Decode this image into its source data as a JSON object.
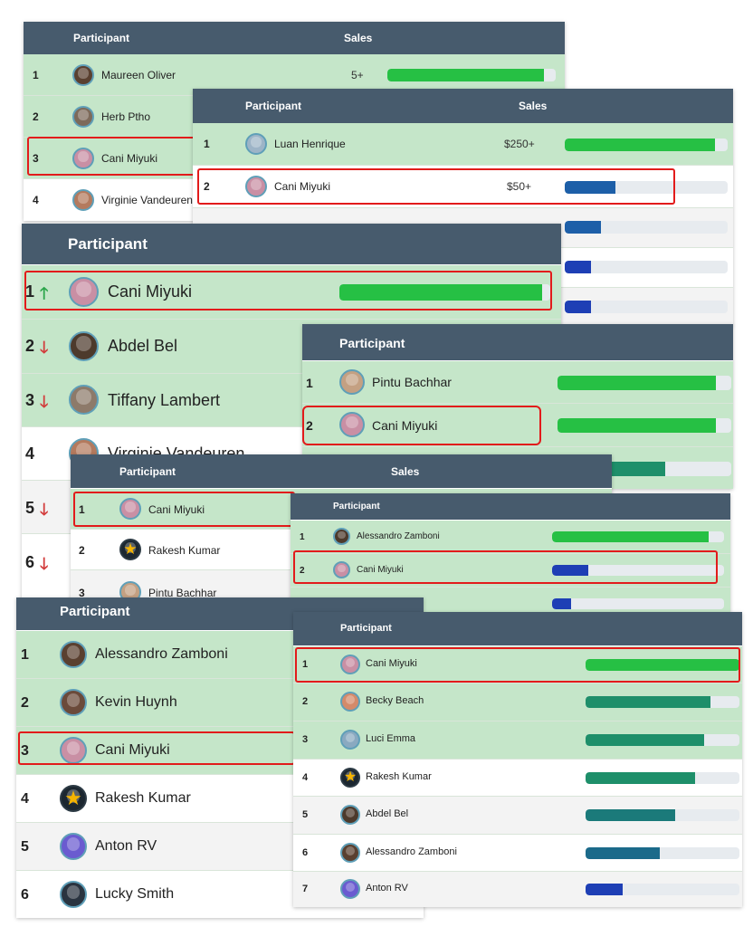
{
  "colors": {
    "header": "#475b6d",
    "row_green": "#c5e6c9",
    "bar_green": "#26c044",
    "bar_teal": "#1e8f6a",
    "bar_blue": "#1d5fa8",
    "bar_navy": "#1e3fb5",
    "highlight": "#e21b1b",
    "arrow_up": "#2aa54a",
    "arrow_down": "#d23b3b"
  },
  "p1": {
    "col_participant": "Participant",
    "col_sales": "Sales",
    "rows": [
      {
        "rank": "1",
        "name": "Maureen Oliver",
        "amount": "5+",
        "bar": 0.93
      },
      {
        "rank": "2",
        "name": "Herb Ptho"
      },
      {
        "rank": "3",
        "name": "Cani Miyuki"
      },
      {
        "rank": "4",
        "name": "Virginie Vandeuren"
      }
    ]
  },
  "p2": {
    "col_participant": "Participant",
    "col_sales": "Sales",
    "rows": [
      {
        "rank": "1",
        "name": "Luan Henrique",
        "amount": "$250+",
        "bar": 0.92
      },
      {
        "rank": "2",
        "name": "Cani Miyuki",
        "amount": "$50+",
        "bar": 0.31
      }
    ]
  },
  "p3": {
    "col_participant": "Participant",
    "rows": [
      {
        "rank": "1",
        "arrow": "up",
        "name": "Cani Miyuki",
        "bar": 0.96
      },
      {
        "rank": "2",
        "arrow": "down",
        "name": "Abdel Bel"
      },
      {
        "rank": "3",
        "arrow": "down",
        "name": "Tiffany Lambert"
      },
      {
        "rank": "4",
        "name": "Virginie Vandeuren"
      },
      {
        "rank": "5",
        "arrow": "down"
      },
      {
        "rank": "6",
        "arrow": "down"
      }
    ]
  },
  "p4": {
    "col_participant": "Participant",
    "rows": [
      {
        "rank": "1",
        "name": "Pintu Bachhar",
        "bar": 0.91
      },
      {
        "rank": "2",
        "name": "Cani Miyuki",
        "bar": 0.91
      }
    ]
  },
  "p5": {
    "col_participant": "Participant",
    "col_sales": "Sales",
    "rows": [
      {
        "rank": "1",
        "name": "Cani Miyuki"
      },
      {
        "rank": "2",
        "name": "Rakesh Kumar"
      },
      {
        "rank": "3",
        "name": "Pintu Bachhar"
      }
    ]
  },
  "p6": {
    "col_participant": "Participant",
    "rows": [
      {
        "rank": "1",
        "name": "Alessandro Zamboni",
        "bar": 0.91
      },
      {
        "rank": "2",
        "name": "Cani Miyuki",
        "bar": 0.21
      },
      {
        "rank": "3",
        "bar": 0.11
      }
    ]
  },
  "p7": {
    "col_participant": "Participant",
    "rows": [
      {
        "rank": "1",
        "name": "Alessandro Zamboni"
      },
      {
        "rank": "2",
        "name": "Kevin Huynh"
      },
      {
        "rank": "3",
        "name": "Cani Miyuki"
      },
      {
        "rank": "4",
        "name": "Rakesh Kumar"
      },
      {
        "rank": "5",
        "name": "Anton RV"
      },
      {
        "rank": "6",
        "name": "Lucky Smith"
      }
    ]
  },
  "p8": {
    "col_participant": "Participant",
    "rows": [
      {
        "rank": "1",
        "name": "Cani Miyuki",
        "bar": 1.0
      },
      {
        "rank": "2",
        "name": "Becky Beach",
        "bar": 0.81
      },
      {
        "rank": "3",
        "name": "Luci Emma",
        "bar": 0.77
      },
      {
        "rank": "4",
        "name": "Rakesh Kumar",
        "bar": 0.71
      },
      {
        "rank": "5",
        "name": "Abdel Bel",
        "bar": 0.58
      },
      {
        "rank": "6",
        "name": "Alessandro Zamboni",
        "bar": 0.48
      },
      {
        "rank": "7",
        "name": "Anton RV",
        "bar": 0.24
      }
    ]
  }
}
